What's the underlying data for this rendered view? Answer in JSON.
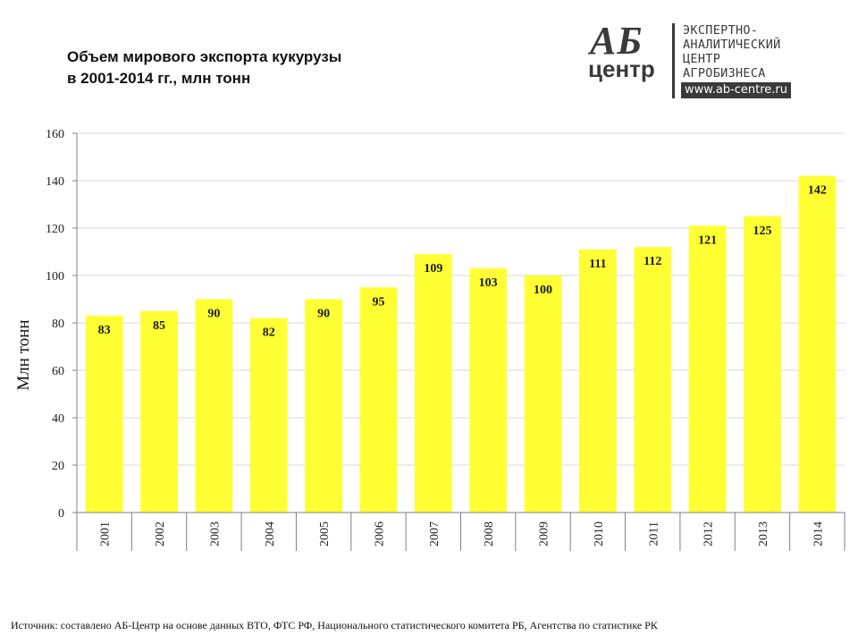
{
  "header": {
    "title_line1": "Объем мирового экспорта кукурузы",
    "title_line2": "в 2001-2014 гг., млн тонн"
  },
  "logo": {
    "mark_top": "АБ",
    "mark_bottom": "центр",
    "lines": [
      "ЭКСПЕРТНО-",
      "АНАЛИТИЧЕСКИЙ",
      "ЦЕНТР",
      "АГРОБИЗНЕСА"
    ],
    "url": "www.ab-centre.ru"
  },
  "footer": {
    "source": "Источник: составлено АБ-Центр на основе данных ВТО, ФТС РФ, Национального статистического комитета РБ, Агентства по статистике РК"
  },
  "chart_data": {
    "type": "bar",
    "title": "Объем мирового экспорта кукурузы в 2001-2014 гг., млн тонн",
    "xlabel": "",
    "ylabel": "Млн тонн",
    "categories": [
      "2001",
      "2002",
      "2003",
      "2004",
      "2005",
      "2006",
      "2007",
      "2008",
      "2009",
      "2010",
      "2011",
      "2012",
      "2013",
      "2014"
    ],
    "values": [
      83,
      85,
      90,
      82,
      90,
      95,
      109,
      103,
      100,
      111,
      112,
      121,
      125,
      142
    ],
    "ylim": [
      0,
      160
    ],
    "yticks": [
      0,
      20,
      40,
      60,
      80,
      100,
      120,
      140,
      160
    ],
    "grid": true,
    "legend": "none",
    "bar_color": "#ffff33",
    "grid_color": "#d9d9d9",
    "axis_color": "#808080",
    "label_color": "#1a1a1a"
  }
}
